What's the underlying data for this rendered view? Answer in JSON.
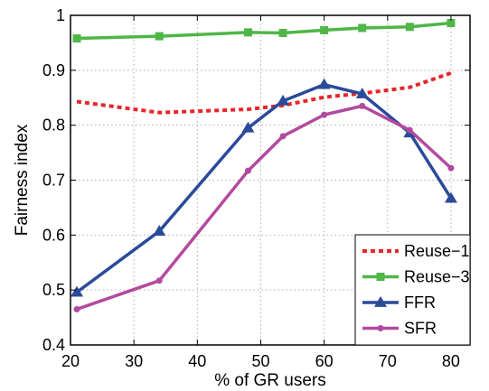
{
  "chart_data": {
    "type": "line",
    "xlabel": "% of GR users",
    "ylabel": "Fairness index",
    "xlim": [
      20,
      83
    ],
    "ylim": [
      0.4,
      1.0
    ],
    "x_ticks": [
      20,
      30,
      40,
      50,
      60,
      70,
      80
    ],
    "y_ticks": [
      0.4,
      0.5,
      0.6,
      0.7,
      0.8,
      0.9,
      1.0
    ],
    "x_tick_labels": [
      "20",
      "30",
      "40",
      "50",
      "60",
      "70",
      "80"
    ],
    "y_tick_labels": [
      "0.4",
      "0.5",
      "0.6",
      "0.7",
      "0.8",
      "0.9",
      "1"
    ],
    "grid": true,
    "legend_position": "bottom-right",
    "series": [
      {
        "name": "Reuse−1",
        "color": "#e8262a",
        "style": "dotted",
        "marker": "none",
        "x": [
          21,
          34,
          48,
          53.5,
          60,
          66,
          73.5,
          80
        ],
        "y": [
          0.843,
          0.823,
          0.829,
          0.836,
          0.851,
          0.858,
          0.869,
          0.895
        ]
      },
      {
        "name": "Reuse−3",
        "color": "#4fb648",
        "style": "solid",
        "marker": "square",
        "x": [
          21,
          34,
          48,
          53.5,
          60,
          66,
          73.5,
          80
        ],
        "y": [
          0.958,
          0.962,
          0.969,
          0.968,
          0.973,
          0.977,
          0.979,
          0.986
        ]
      },
      {
        "name": "FFR",
        "color": "#2b4a9a",
        "style": "solid",
        "marker": "triangle",
        "x": [
          21,
          34,
          48,
          53.5,
          60,
          66,
          73.5,
          80
        ],
        "y": [
          0.496,
          0.607,
          0.795,
          0.844,
          0.874,
          0.857,
          0.786,
          0.667
        ]
      },
      {
        "name": "SFR",
        "color": "#b24a9e",
        "style": "solid",
        "marker": "circle",
        "x": [
          21,
          34,
          48,
          53.5,
          60,
          66,
          73.5,
          80
        ],
        "y": [
          0.465,
          0.517,
          0.717,
          0.78,
          0.819,
          0.835,
          0.791,
          0.722
        ]
      }
    ]
  }
}
